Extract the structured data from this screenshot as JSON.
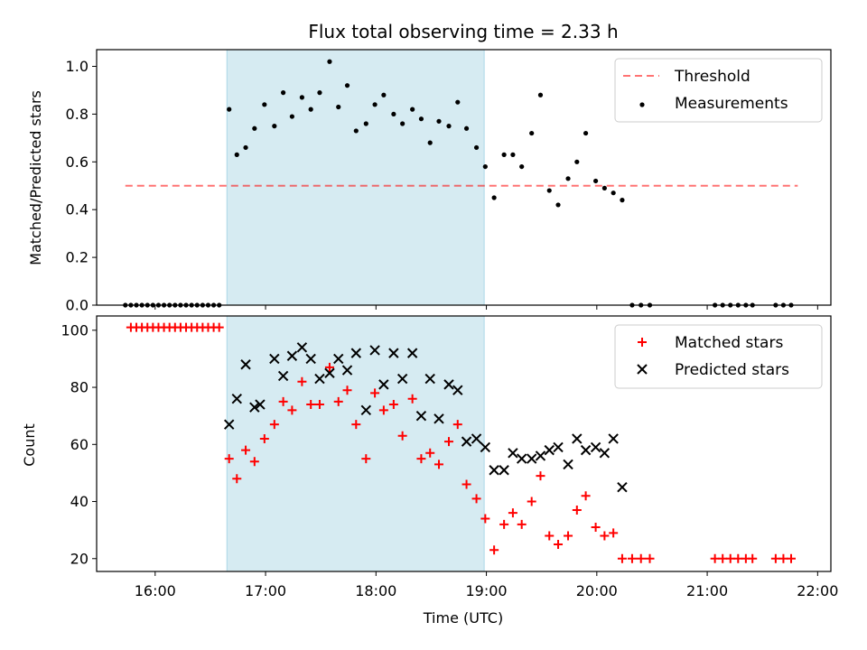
{
  "title": "Flux total observing time = 2.33 h",
  "colors": {
    "shade": "#add8e6",
    "threshold": "#ff0000",
    "measurement": "#000000",
    "matched": "#ff0000",
    "predicted": "#000000"
  },
  "x_ticks": [
    "16:00",
    "17:00",
    "18:00",
    "19:00",
    "20:00",
    "21:00",
    "22:00"
  ],
  "chart_data": [
    {
      "type": "scatter",
      "panel": "top",
      "ylabel": "Matched/Predicted stars",
      "xlim": [
        15.47,
        22.12
      ],
      "ylim": [
        0,
        1.07
      ],
      "yticks": [
        "0.0",
        "0.2",
        "0.4",
        "0.6",
        "0.8",
        "1.0"
      ],
      "shaded_span": [
        16.65,
        18.98
      ],
      "threshold": {
        "name": "Threshold",
        "value": 0.5,
        "x_range": [
          15.73,
          21.82
        ]
      },
      "legend_position": "top-right",
      "series": [
        {
          "name": "Measurements",
          "x": [
            15.73,
            15.78,
            15.83,
            15.88,
            15.93,
            15.98,
            16.03,
            16.08,
            16.13,
            16.18,
            16.23,
            16.28,
            16.33,
            16.38,
            16.43,
            16.48,
            16.53,
            16.58,
            16.67,
            16.74,
            16.82,
            16.9,
            16.99,
            17.08,
            17.16,
            17.24,
            17.33,
            17.41,
            17.49,
            17.58,
            17.66,
            17.74,
            17.82,
            17.91,
            17.99,
            18.07,
            18.16,
            18.24,
            18.33,
            18.41,
            18.49,
            18.57,
            18.66,
            18.74,
            18.82,
            18.91,
            18.99,
            19.07,
            19.16,
            19.24,
            19.32,
            19.41,
            19.49,
            19.57,
            19.65,
            19.74,
            19.82,
            19.9,
            19.99,
            20.07,
            20.15,
            20.23,
            20.32,
            20.4,
            20.48,
            21.07,
            21.14,
            21.21,
            21.28,
            21.35,
            21.41,
            21.62,
            21.69,
            21.76
          ],
          "y": [
            0,
            0,
            0,
            0,
            0,
            0,
            0,
            0,
            0,
            0,
            0,
            0,
            0,
            0,
            0,
            0,
            0,
            0,
            0.82,
            0.63,
            0.66,
            0.74,
            0.84,
            0.75,
            0.89,
            0.79,
            0.87,
            0.82,
            0.89,
            1.02,
            0.83,
            0.92,
            0.73,
            0.76,
            0.84,
            0.88,
            0.8,
            0.76,
            0.82,
            0.78,
            0.68,
            0.77,
            0.75,
            0.85,
            0.74,
            0.66,
            0.58,
            0.45,
            0.63,
            0.63,
            0.58,
            0.72,
            0.88,
            0.48,
            0.42,
            0.53,
            0.6,
            0.72,
            0.52,
            0.49,
            0.47,
            0.44,
            0,
            0,
            0,
            0,
            0,
            0,
            0,
            0,
            0,
            0,
            0,
            0
          ]
        }
      ]
    },
    {
      "type": "scatter",
      "panel": "bottom",
      "xlabel": "Time (UTC)",
      "ylabel": "Count",
      "xlim": [
        15.47,
        22.12
      ],
      "ylim": [
        15.5,
        105
      ],
      "yticks": [
        "20",
        "40",
        "60",
        "80",
        "100"
      ],
      "shaded_span": [
        16.65,
        18.98
      ],
      "legend_position": "top-right",
      "series": [
        {
          "name": "Matched stars",
          "x": [
            15.78,
            15.83,
            15.88,
            15.93,
            15.98,
            16.03,
            16.08,
            16.13,
            16.18,
            16.23,
            16.28,
            16.33,
            16.38,
            16.43,
            16.48,
            16.53,
            16.58,
            16.67,
            16.74,
            16.82,
            16.9,
            16.99,
            17.08,
            17.16,
            17.24,
            17.33,
            17.41,
            17.49,
            17.58,
            17.66,
            17.74,
            17.82,
            17.91,
            17.99,
            18.07,
            18.16,
            18.24,
            18.33,
            18.41,
            18.49,
            18.57,
            18.66,
            18.74,
            18.82,
            18.91,
            18.99,
            19.07,
            19.16,
            19.24,
            19.32,
            19.41,
            19.49,
            19.57,
            19.65,
            19.74,
            19.82,
            19.9,
            19.99,
            20.07,
            20.15,
            20.23,
            20.32,
            20.4,
            20.48,
            21.07,
            21.14,
            21.21,
            21.28,
            21.35,
            21.41,
            21.62,
            21.69,
            21.76
          ],
          "y": [
            101,
            101,
            101,
            101,
            101,
            101,
            101,
            101,
            101,
            101,
            101,
            101,
            101,
            101,
            101,
            101,
            101,
            55,
            48,
            58,
            54,
            62,
            67,
            75,
            72,
            82,
            74,
            74,
            87,
            75,
            79,
            67,
            55,
            78,
            72,
            74,
            63,
            76,
            55,
            57,
            53,
            61,
            67,
            46,
            41,
            34,
            23,
            32,
            36,
            32,
            40,
            49,
            28,
            25,
            28,
            37,
            42,
            31,
            28,
            29,
            20,
            20,
            20,
            20,
            20,
            20,
            20,
            20,
            20,
            20,
            20,
            20,
            20
          ]
        },
        {
          "name": "Predicted stars",
          "x": [
            16.67,
            16.74,
            16.82,
            16.9,
            16.95,
            17.08,
            17.16,
            17.24,
            17.33,
            17.41,
            17.49,
            17.58,
            17.66,
            17.74,
            17.82,
            17.91,
            17.99,
            18.07,
            18.16,
            18.24,
            18.33,
            18.41,
            18.49,
            18.57,
            18.66,
            18.74,
            18.82,
            18.91,
            18.99,
            19.07,
            19.16,
            19.24,
            19.32,
            19.41,
            19.49,
            19.57,
            19.65,
            19.74,
            19.82,
            19.9,
            19.99,
            20.07,
            20.15,
            20.23
          ],
          "y": [
            67,
            76,
            88,
            73,
            74,
            90,
            84,
            91,
            94,
            90,
            83,
            85,
            90,
            86,
            92,
            72,
            93,
            81,
            92,
            83,
            92,
            70,
            83,
            69,
            81,
            79,
            61,
            62,
            59,
            51,
            51,
            57,
            55,
            55,
            56,
            58,
            59,
            53,
            62,
            58,
            59,
            57,
            62,
            45
          ]
        }
      ]
    }
  ]
}
